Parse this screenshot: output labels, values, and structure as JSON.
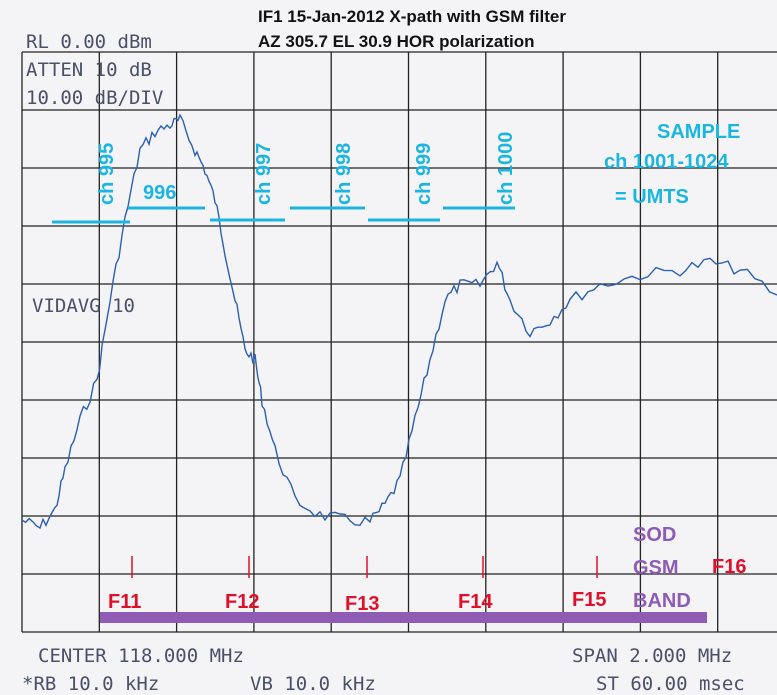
{
  "header": {
    "title": "IF1 15-Jan-2012 X-path with GSM filter",
    "subtitle": "AZ 305.7 EL 30.9 HOR polarization"
  },
  "instrument": {
    "reference_level": "RL 0.00 dBm",
    "attenuation": "ATTEN 10 dB",
    "scale": "10.00 dB/DIV",
    "video_average": "VIDAVG 10",
    "center": "CENTER 118.000 MHz",
    "span": "SPAN 2.000 MHz",
    "resolution_bw": "*RB 10.0 kHz",
    "video_bw": "VB 10.0 kHz",
    "sweep_time": "ST 60.00 msec"
  },
  "channels": [
    "ch 995",
    "996",
    "ch 997",
    "ch 998",
    "ch 999",
    "ch 1000"
  ],
  "sample": "SAMPLE",
  "umts": {
    "channels": "ch 1001-1024",
    "label": "= UMTS"
  },
  "markers": [
    "F11",
    "F12",
    "F13",
    "F14",
    "F15",
    "F16"
  ],
  "band": [
    "SOD",
    "GSM",
    "BAND"
  ]
}
